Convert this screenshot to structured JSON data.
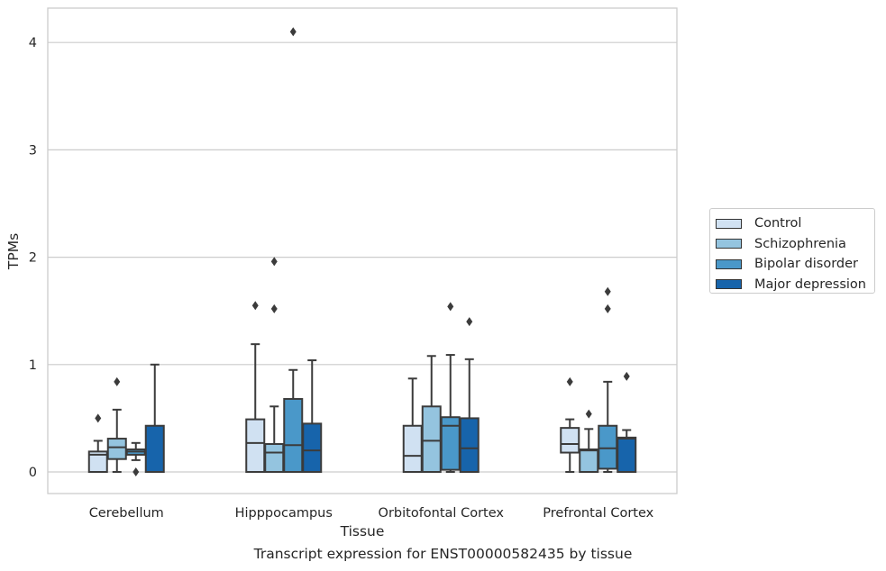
{
  "chart_data": {
    "type": "boxplot",
    "caption": "Transcript expression for ENST00000582435 by tissue",
    "xlabel": "Tissue",
    "ylabel": "TPMs",
    "ylim": [
      -0.2,
      4.3
    ],
    "yticks": [
      0,
      1,
      2,
      3,
      4
    ],
    "grid": "horizontal",
    "legend_position": "right",
    "categories": [
      "Cerebellum",
      "Hipppocampus",
      "Orbitofontal Cortex",
      "Prefrontal Cortex"
    ],
    "series": [
      {
        "name": "Control",
        "color": "#d0e1f2",
        "boxes": [
          {
            "whisker_low": 0,
            "q1": 0,
            "median": 0.16,
            "q3": 0.19,
            "whisker_high": 0.29,
            "outliers": [
              0.5
            ]
          },
          {
            "whisker_low": 0,
            "q1": 0,
            "median": 0.27,
            "q3": 0.49,
            "whisker_high": 1.19,
            "outliers": [
              1.55
            ]
          },
          {
            "whisker_low": 0,
            "q1": 0,
            "median": 0.15,
            "q3": 0.43,
            "whisker_high": 0.87,
            "outliers": []
          },
          {
            "whisker_low": 0,
            "q1": 0.18,
            "median": 0.26,
            "q3": 0.41,
            "whisker_high": 0.49,
            "outliers": [
              0.84
            ]
          }
        ]
      },
      {
        "name": "Schizophrenia",
        "color": "#94c4df",
        "boxes": [
          {
            "whisker_low": 0,
            "q1": 0.12,
            "median": 0.23,
            "q3": 0.31,
            "whisker_high": 0.58,
            "outliers": [
              0.84
            ]
          },
          {
            "whisker_low": 0,
            "q1": 0,
            "median": 0.18,
            "q3": 0.26,
            "whisker_high": 0.61,
            "outliers": [
              1.52,
              1.96
            ]
          },
          {
            "whisker_low": 0,
            "q1": 0,
            "median": 0.29,
            "q3": 0.61,
            "whisker_high": 1.08,
            "outliers": []
          },
          {
            "whisker_low": 0,
            "q1": 0,
            "median": 0.2,
            "q3": 0.21,
            "whisker_high": 0.4,
            "outliers": [
              0.54
            ]
          }
        ]
      },
      {
        "name": "Bipolar disorder",
        "color": "#4a98c9",
        "boxes": [
          {
            "whisker_low": 0.11,
            "q1": 0.16,
            "median": 0.19,
            "q3": 0.21,
            "whisker_high": 0.27,
            "outliers": [
              0
            ]
          },
          {
            "whisker_low": 0,
            "q1": 0,
            "median": 0.25,
            "q3": 0.68,
            "whisker_high": 0.95,
            "outliers": [
              4.1
            ]
          },
          {
            "whisker_low": 0,
            "q1": 0.02,
            "median": 0.43,
            "q3": 0.51,
            "whisker_high": 1.09,
            "outliers": [
              1.54
            ]
          },
          {
            "whisker_low": 0,
            "q1": 0.03,
            "median": 0.22,
            "q3": 0.43,
            "whisker_high": 0.84,
            "outliers": [
              1.52,
              1.68
            ]
          }
        ]
      },
      {
        "name": "Major depression",
        "color": "#1764ab",
        "boxes": [
          {
            "whisker_low": 0,
            "q1": 0,
            "median": 0,
            "q3": 0.43,
            "whisker_high": 1.0,
            "outliers": []
          },
          {
            "whisker_low": 0,
            "q1": 0,
            "median": 0.2,
            "q3": 0.45,
            "whisker_high": 1.04,
            "outliers": []
          },
          {
            "whisker_low": 0,
            "q1": 0,
            "median": 0.22,
            "q3": 0.5,
            "whisker_high": 1.05,
            "outliers": [
              1.4
            ]
          },
          {
            "whisker_low": 0,
            "q1": 0,
            "median": 0.31,
            "q3": 0.32,
            "whisker_high": 0.39,
            "outliers": [
              0.89
            ]
          }
        ]
      }
    ]
  }
}
